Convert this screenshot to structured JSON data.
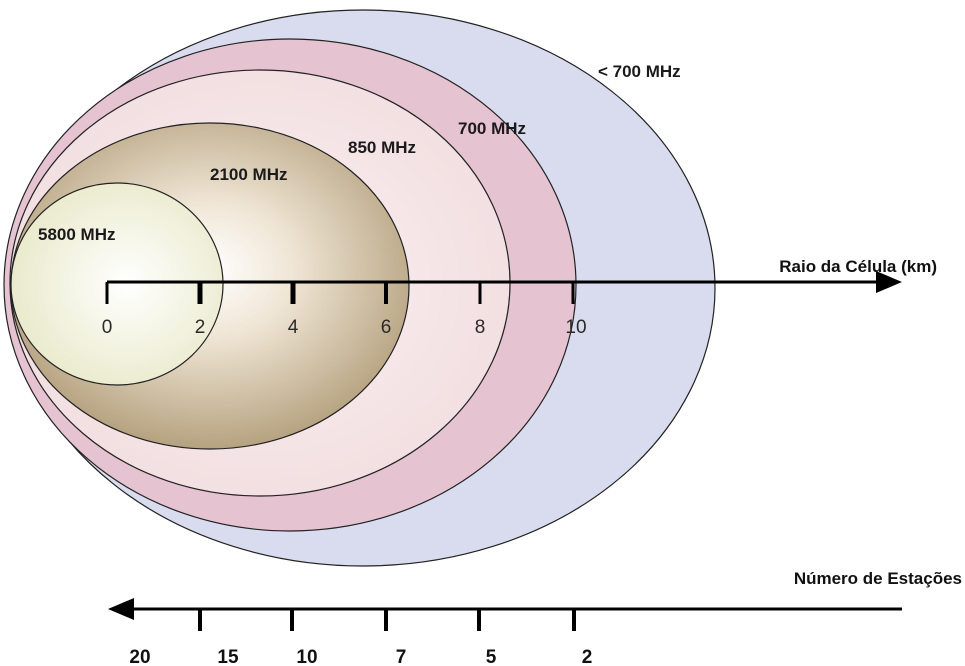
{
  "bands": [
    {
      "label": "< 700 MHz",
      "color": "#d9dcee"
    },
    {
      "label": "700 MHz",
      "color": "#e6c3d0"
    },
    {
      "label": "850 MHz",
      "color": "#f5e4e6"
    },
    {
      "label": "2100 MHz",
      "color": "#b4a17f"
    },
    {
      "label": "5800 MHz",
      "color": "#f0f0d8"
    }
  ],
  "radius_axis": {
    "label": "Raio da Célula (km)",
    "ticks": [
      "0",
      "2",
      "4",
      "6",
      "8",
      "10"
    ]
  },
  "stations_axis": {
    "label": "Número de Estações",
    "ticks": [
      "20",
      "15",
      "10",
      "7",
      "5",
      "2"
    ]
  }
}
